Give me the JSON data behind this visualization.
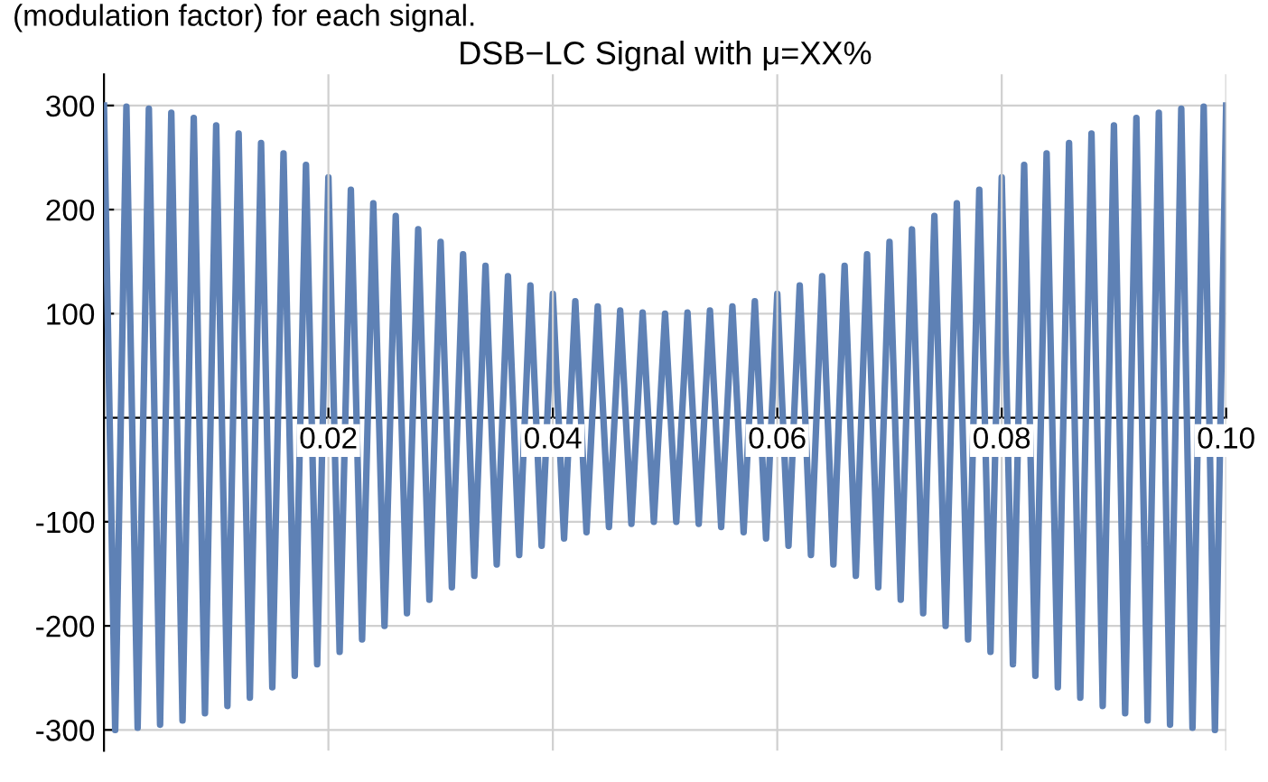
{
  "chart_data": {
    "type": "line",
    "title": "DSB−LC Signal with μ=XX%",
    "annotations": [
      "(modulation factor) for each signal."
    ],
    "x": [
      0,
      0.001,
      0.002,
      0.003,
      0.004,
      0.005,
      0.006,
      0.007,
      0.008,
      0.009,
      0.01,
      0.011,
      0.012,
      0.013,
      0.014,
      0.015,
      0.016,
      0.017,
      0.018,
      0.019,
      0.02,
      0.021,
      0.022,
      0.023,
      0.024,
      0.025,
      0.026,
      0.027,
      0.028,
      0.029,
      0.03,
      0.031,
      0.032,
      0.033,
      0.034,
      0.035,
      0.036,
      0.037,
      0.038,
      0.039,
      0.04,
      0.041,
      0.042,
      0.043,
      0.044,
      0.045,
      0.046,
      0.047,
      0.048,
      0.049,
      0.05,
      0.051,
      0.052,
      0.053,
      0.054,
      0.055,
      0.056,
      0.057,
      0.058,
      0.059,
      0.06,
      0.061,
      0.062,
      0.063,
      0.064,
      0.065,
      0.066,
      0.067,
      0.068,
      0.069,
      0.07,
      0.071,
      0.072,
      0.073,
      0.074,
      0.075,
      0.076,
      0.077,
      0.078,
      0.079,
      0.08,
      0.081,
      0.082,
      0.083,
      0.084,
      0.085,
      0.086,
      0.087,
      0.088,
      0.089,
      0.09,
      0.091,
      0.092,
      0.093,
      0.094,
      0.095,
      0.096,
      0.097,
      0.098,
      0.099,
      0.1
    ],
    "series": [
      {
        "color": "#5e81b5",
        "values": [
          300,
          -300,
          299,
          -298,
          297,
          -295,
          293,
          -291,
          288,
          -284,
          281,
          -277,
          273,
          -269,
          264,
          -259,
          254,
          -248,
          243,
          -237,
          231,
          -225,
          219,
          -213,
          206,
          -200,
          194,
          -188,
          181,
          -175,
          169,
          -163,
          157,
          -152,
          146,
          -141,
          136,
          -132,
          127,
          -123,
          119,
          -116,
          112,
          -110,
          107,
          -105,
          103,
          -102,
          101,
          -100,
          100,
          -100,
          101,
          -102,
          103,
          -105,
          107,
          -110,
          112,
          -116,
          119,
          -123,
          127,
          -132,
          136,
          -141,
          146,
          -152,
          157,
          -163,
          169,
          -175,
          181,
          -188,
          194,
          -200,
          206,
          -213,
          219,
          -225,
          231,
          -237,
          243,
          -248,
          254,
          -259,
          264,
          -269,
          273,
          -277,
          281,
          -284,
          288,
          -291,
          293,
          -295,
          297,
          -298,
          299,
          -300,
          300
        ]
      }
    ],
    "xlim": [
      0,
      0.1
    ],
    "ylim": [
      -320,
      330
    ],
    "xticks": [
      {
        "value": 0.02,
        "label": "0.02"
      },
      {
        "value": 0.04,
        "label": "0.04"
      },
      {
        "value": 0.06,
        "label": "0.06"
      },
      {
        "value": 0.08,
        "label": "0.08"
      },
      {
        "value": 0.1,
        "label": "0.10"
      }
    ],
    "yticks": [
      -300,
      -200,
      -100,
      100,
      200,
      300
    ],
    "grid": true,
    "line_style": "solid",
    "marker": "none"
  }
}
